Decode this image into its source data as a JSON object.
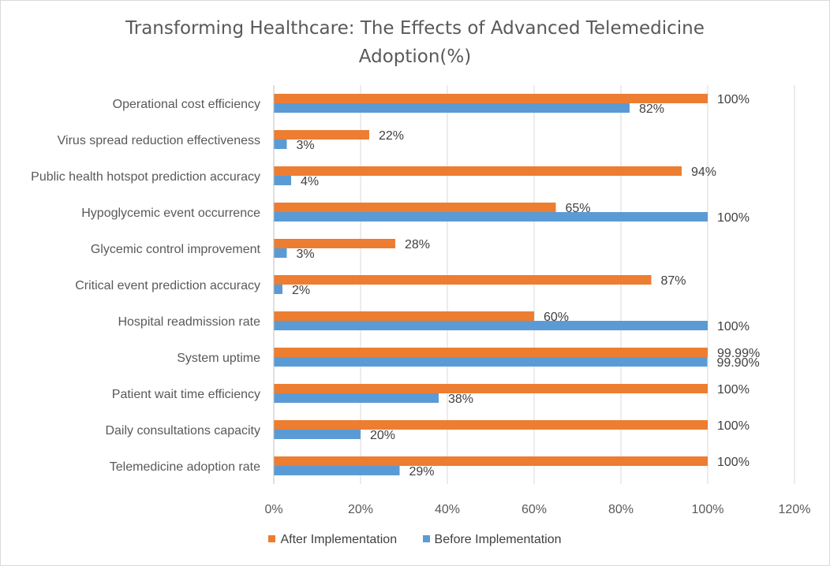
{
  "chart_data": {
    "type": "bar",
    "orientation": "horizontal",
    "title_line1": "Transforming Healthcare: The Effects of Advanced Telemedicine",
    "title_line2": "Adoption(%)",
    "categories": [
      "Operational cost efficiency",
      "Virus spread reduction effectiveness",
      "Public health hotspot prediction accuracy",
      "Hypoglycemic event occurrence",
      "Glycemic control improvement",
      "Critical event prediction accuracy",
      "Hospital readmission rate",
      "System uptime",
      "Patient wait time efficiency",
      "Daily consultations capacity",
      "Telemedicine adoption rate"
    ],
    "series": [
      {
        "name": "After Implementation",
        "color": "#ed7d31",
        "values": [
          100,
          22,
          94,
          65,
          28,
          87,
          60,
          99.99,
          100,
          100,
          100
        ],
        "labels": [
          "100%",
          "22%",
          "94%",
          "65%",
          "28%",
          "87%",
          "60%",
          "99.99%",
          "100%",
          "100%",
          "100%"
        ]
      },
      {
        "name": "Before Implementation",
        "color": "#5b9bd5",
        "values": [
          82,
          3,
          4,
          100,
          3,
          2,
          100,
          99.9,
          38,
          20,
          29
        ],
        "labels": [
          "82%",
          "3%",
          "4%",
          "100%",
          "3%",
          "2%",
          "100%",
          "99.90%",
          "38%",
          "20%",
          "29%"
        ]
      }
    ],
    "x_ticks": [
      "0%",
      "20%",
      "40%",
      "60%",
      "80%",
      "100%",
      "120%"
    ],
    "xlim": [
      0,
      120
    ],
    "grid": true,
    "legend_position": "bottom"
  }
}
